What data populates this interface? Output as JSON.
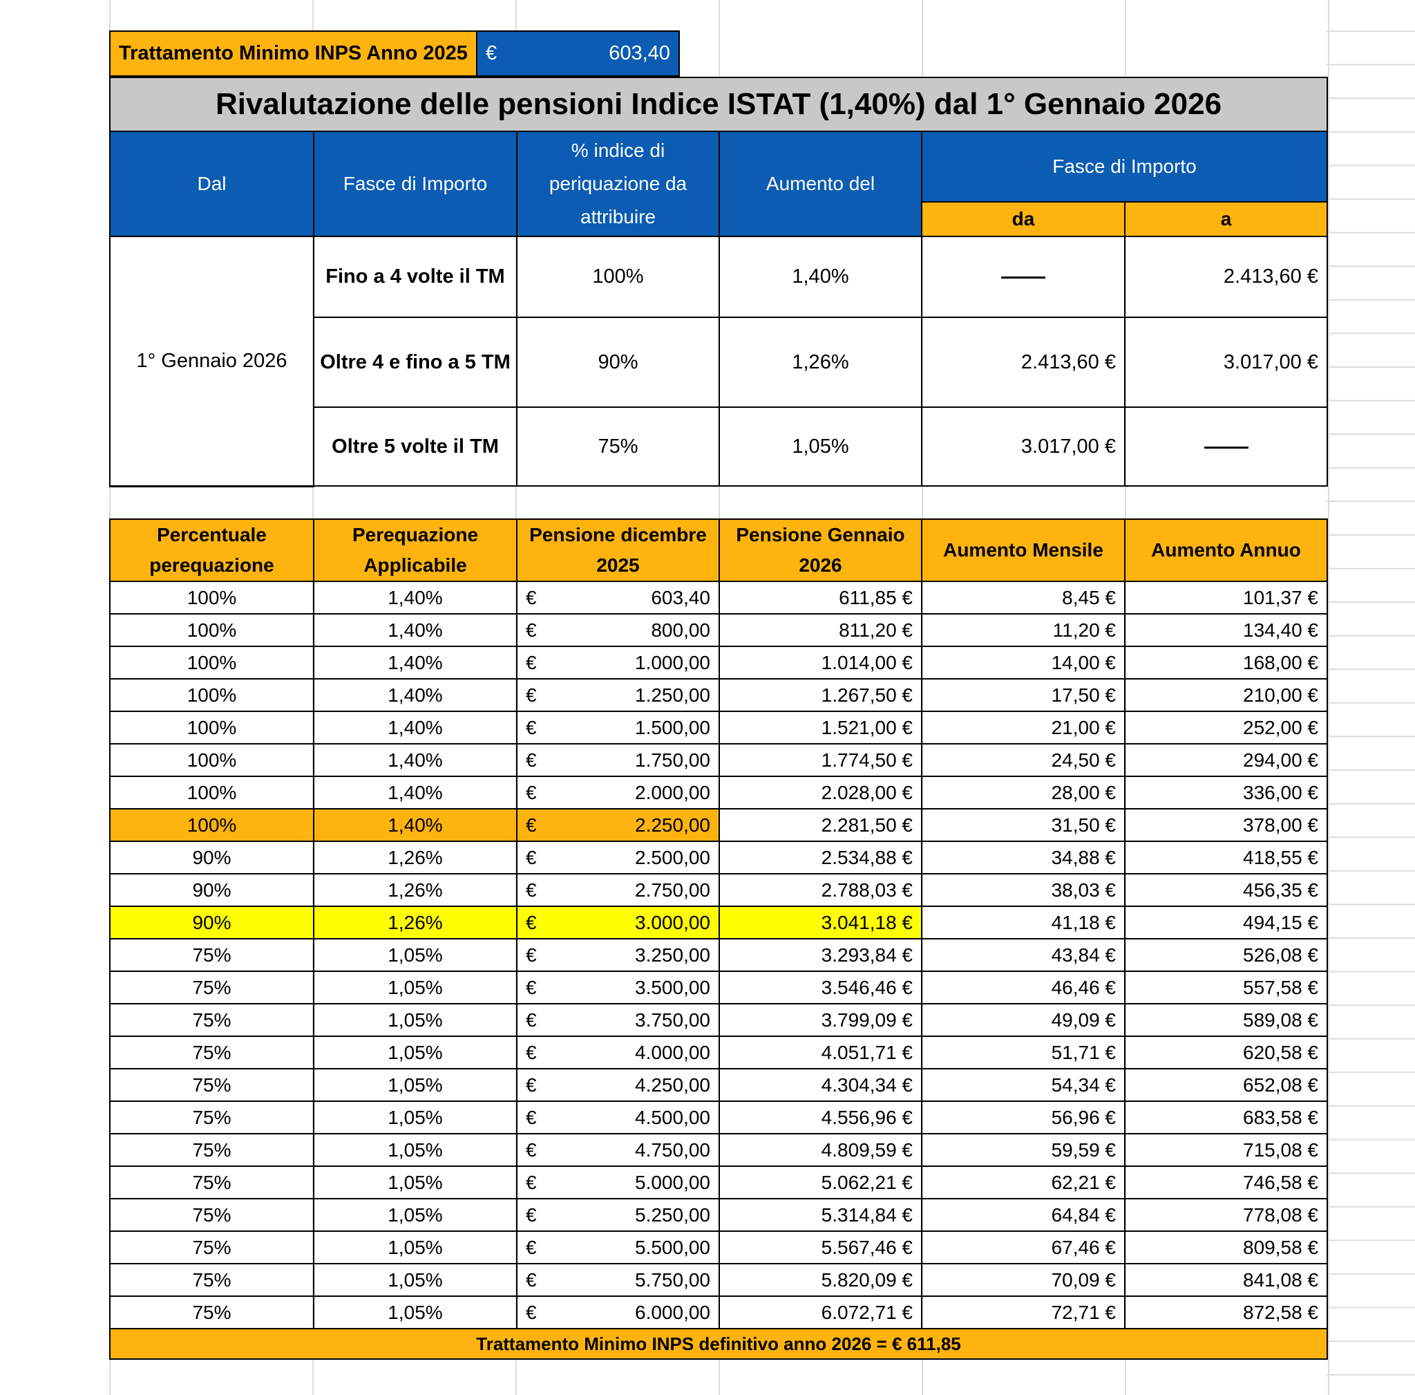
{
  "top": {
    "label": "Trattamento Minimo INPS Anno 2025",
    "currency": "€",
    "value": "603,40"
  },
  "title": "Rivalutazione delle pensioni Indice ISTAT (1,40%) dal 1° Gennaio 2026",
  "bands_header": {
    "dal": "Dal",
    "fasce": "Fasce di Importo",
    "indice": "% indice di periquazione da attribuire",
    "aumento": "Aumento del",
    "fasce2": "Fasce di Importo",
    "da": "da",
    "a": "a"
  },
  "bands": {
    "date": "1° Gennaio 2026",
    "rows": [
      {
        "fascia": "Fino a 4 volte  il TM",
        "indice": "100%",
        "aumento": "1,40%",
        "da": "",
        "a": "2.413,60 €"
      },
      {
        "fascia": "Oltre 4 e fino a 5 TM",
        "indice": "90%",
        "aumento": "1,26%",
        "da": "2.413,60 €",
        "a": "3.017,00 €"
      },
      {
        "fascia": "Oltre 5 volte il TM",
        "indice": "75%",
        "aumento": "1,05%",
        "da": "3.017,00 €",
        "a": ""
      }
    ]
  },
  "table": {
    "headers": [
      "Percentuale perequazione",
      "Perequazione Applicabile",
      "Pensione dicembre 2025",
      "Pensione Gennaio 2026",
      "Aumento Mensile",
      "Aumento Annuo"
    ],
    "currency": "€",
    "highlight_colors": {
      "orange": "#FFB30F",
      "yellow": "#FFFF00"
    },
    "rows": [
      [
        "100%",
        "1,40%",
        "603,40",
        "611,85 €",
        "8,45 €",
        "101,37 €",
        ""
      ],
      [
        "100%",
        "1,40%",
        "800,00",
        "811,20 €",
        "11,20 €",
        "134,40 €",
        ""
      ],
      [
        "100%",
        "1,40%",
        "1.000,00",
        "1.014,00 €",
        "14,00 €",
        "168,00 €",
        ""
      ],
      [
        "100%",
        "1,40%",
        "1.250,00",
        "1.267,50 €",
        "17,50 €",
        "210,00 €",
        ""
      ],
      [
        "100%",
        "1,40%",
        "1.500,00",
        "1.521,00 €",
        "21,00 €",
        "252,00 €",
        ""
      ],
      [
        "100%",
        "1,40%",
        "1.750,00",
        "1.774,50 €",
        "24,50 €",
        "294,00 €",
        ""
      ],
      [
        "100%",
        "1,40%",
        "2.000,00",
        "2.028,00 €",
        "28,00 €",
        "336,00 €",
        ""
      ],
      [
        "100%",
        "1,40%",
        "2.250,00",
        "2.281,50 €",
        "31,50 €",
        "378,00 €",
        "orange"
      ],
      [
        "90%",
        "1,26%",
        "2.500,00",
        "2.534,88 €",
        "34,88 €",
        "418,55 €",
        ""
      ],
      [
        "90%",
        "1,26%",
        "2.750,00",
        "2.788,03 €",
        "38,03 €",
        "456,35 €",
        ""
      ],
      [
        "90%",
        "1,26%",
        "3.000,00",
        "3.041,18 €",
        "41,18 €",
        "494,15 €",
        "yellow"
      ],
      [
        "75%",
        "1,05%",
        "3.250,00",
        "3.293,84 €",
        "43,84 €",
        "526,08 €",
        ""
      ],
      [
        "75%",
        "1,05%",
        "3.500,00",
        "3.546,46 €",
        "46,46 €",
        "557,58 €",
        ""
      ],
      [
        "75%",
        "1,05%",
        "3.750,00",
        "3.799,09 €",
        "49,09 €",
        "589,08 €",
        ""
      ],
      [
        "75%",
        "1,05%",
        "4.000,00",
        "4.051,71 €",
        "51,71 €",
        "620,58 €",
        ""
      ],
      [
        "75%",
        "1,05%",
        "4.250,00",
        "4.304,34 €",
        "54,34 €",
        "652,08 €",
        ""
      ],
      [
        "75%",
        "1,05%",
        "4.500,00",
        "4.556,96 €",
        "56,96 €",
        "683,58 €",
        ""
      ],
      [
        "75%",
        "1,05%",
        "4.750,00",
        "4.809,59 €",
        "59,59 €",
        "715,08 €",
        ""
      ],
      [
        "75%",
        "1,05%",
        "5.000,00",
        "5.062,21 €",
        "62,21 €",
        "746,58 €",
        ""
      ],
      [
        "75%",
        "1,05%",
        "5.250,00",
        "5.314,84 €",
        "64,84 €",
        "778,08 €",
        ""
      ],
      [
        "75%",
        "1,05%",
        "5.500,00",
        "5.567,46 €",
        "67,46 €",
        "809,58 €",
        ""
      ],
      [
        "75%",
        "1,05%",
        "5.750,00",
        "5.820,09 €",
        "70,09 €",
        "841,08 €",
        ""
      ],
      [
        "75%",
        "1,05%",
        "6.000,00",
        "6.072,71 €",
        "72,71 €",
        "872,58 €",
        ""
      ]
    ],
    "footer": "Trattamento  Minimo INPS definitivo anno 2026 = € 611,85"
  }
}
